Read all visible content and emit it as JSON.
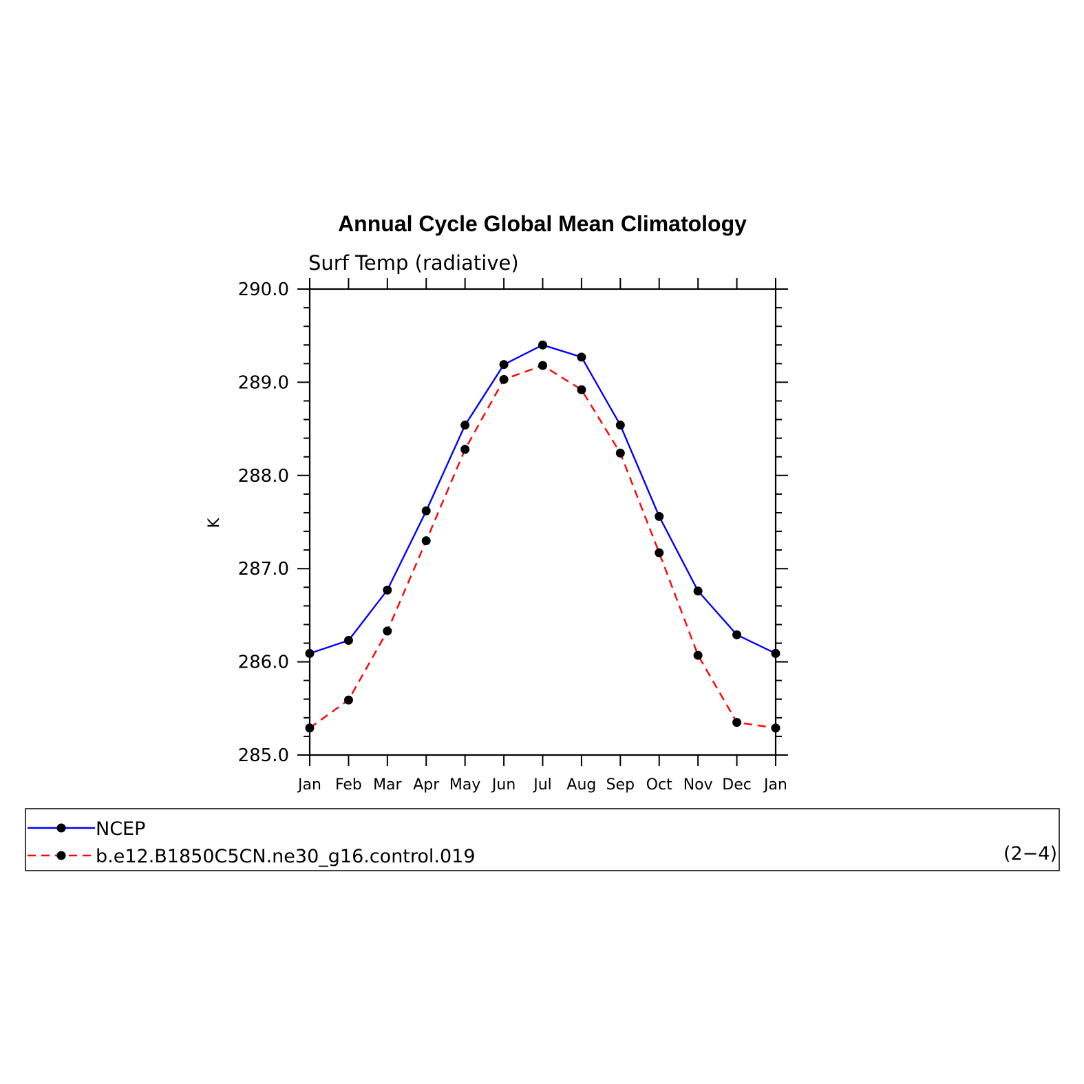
{
  "chart_data": {
    "type": "line",
    "title": "Annual Cycle Global Mean Climatology",
    "subtitle": "Surf Temp (radiative)",
    "ylabel": "K",
    "xlabel": "",
    "categories": [
      "Jan",
      "Feb",
      "Mar",
      "Apr",
      "May",
      "Jun",
      "Jul",
      "Aug",
      "Sep",
      "Oct",
      "Nov",
      "Dec",
      "Jan"
    ],
    "ylim": [
      285.0,
      290.0
    ],
    "yticks": [
      "285.0",
      "286.0",
      "287.0",
      "288.0",
      "289.0",
      "290.0"
    ],
    "grid": false,
    "legend_position": "bottom",
    "series": [
      {
        "name": "NCEP",
        "color": "#0000ff",
        "dash": "solid",
        "values": [
          286.09,
          286.23,
          286.77,
          287.62,
          288.54,
          289.19,
          289.4,
          289.27,
          288.54,
          287.56,
          286.76,
          286.29,
          286.09
        ]
      },
      {
        "name": "b.e12.B1850C5CN.ne30_g16.control.019",
        "color": "#ff0000",
        "dash": "dashed",
        "values": [
          285.29,
          285.59,
          286.33,
          287.3,
          288.28,
          289.03,
          289.18,
          288.92,
          288.24,
          287.17,
          286.07,
          285.35,
          285.29
        ]
      }
    ],
    "panel_label": "(2−4)"
  }
}
